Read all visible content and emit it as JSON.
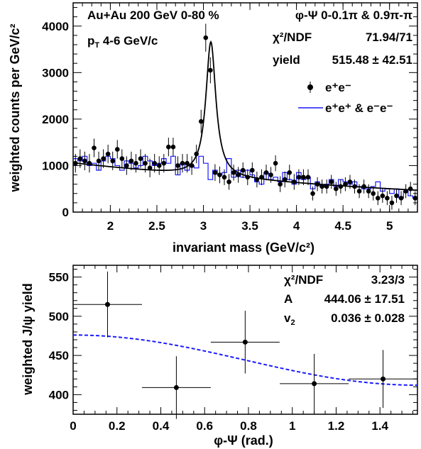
{
  "chart_data": [
    {
      "type": "scatter",
      "xlabel": "invariant mass (GeV/c²)",
      "ylabel": "weighted counts per GeV/c²",
      "xlim": [
        1.6,
        5.3
      ],
      "ylim": [
        0,
        4500
      ],
      "x_ticks": [
        2,
        2.5,
        3,
        3.5,
        4,
        4.5,
        5
      ],
      "x_tick_labels": [
        "2",
        "2.5",
        "3",
        "3.5",
        "4",
        "4.5",
        "5"
      ],
      "y_ticks": [
        0,
        1000,
        2000,
        3000,
        4000
      ],
      "y_tick_labels": [
        "0",
        "1000",
        "2000",
        "3000",
        "4000"
      ],
      "annotations": {
        "system": "Au+Au 200 GeV 0-80 %",
        "pt_p": "p",
        "pt_sub": "T",
        "pt_rest": " 4-6 GeV/c",
        "phi_range": "φ-Ψ 0-0.1π & 0.9π-π",
        "chi2_label": "χ²/NDF",
        "chi2_value": "71.94/71",
        "yield_label": "yield",
        "yield_value": "515.48 ± 42.51"
      },
      "legend": {
        "position": "top-right",
        "entries": [
          "e⁺e⁻",
          "e⁺e⁺ & e⁻e⁻"
        ]
      },
      "colors": {
        "data": "#000000",
        "like_sign": "#1a1aff",
        "fit": "#000000"
      },
      "series": [
        {
          "name": "e⁺e⁻",
          "style": "points",
          "x": [
            1.625,
            1.675,
            1.725,
            1.775,
            1.825,
            1.875,
            1.925,
            1.975,
            2.025,
            2.075,
            2.125,
            2.175,
            2.225,
            2.275,
            2.325,
            2.375,
            2.425,
            2.475,
            2.525,
            2.575,
            2.625,
            2.675,
            2.725,
            2.775,
            2.825,
            2.875,
            2.925,
            2.975,
            3.025,
            3.075,
            3.125,
            3.175,
            3.225,
            3.275,
            3.325,
            3.375,
            3.425,
            3.475,
            3.525,
            3.575,
            3.625,
            3.675,
            3.725,
            3.775,
            3.825,
            3.875,
            3.925,
            3.975,
            4.025,
            4.075,
            4.125,
            4.175,
            4.225,
            4.275,
            4.325,
            4.375,
            4.425,
            4.475,
            4.525,
            4.575,
            4.625,
            4.675,
            4.725,
            4.775,
            4.825,
            4.875,
            4.925,
            4.975,
            5.025,
            5.075,
            5.125,
            5.175,
            5.225,
            5.275
          ],
          "y": [
            1050,
            1150,
            1100,
            1050,
            1380,
            1100,
            1150,
            1250,
            1100,
            1350,
            1150,
            1000,
            1100,
            1050,
            1150,
            1050,
            950,
            1050,
            1000,
            1050,
            1400,
            1400,
            1000,
            1050,
            1050,
            1000,
            1250,
            1950,
            3750,
            3050,
            850,
            800,
            750,
            650,
            850,
            800,
            900,
            750,
            900,
            700,
            750,
            850,
            800,
            1050,
            600,
            700,
            850,
            650,
            750,
            750,
            750,
            400,
            600,
            550,
            550,
            650,
            500,
            550,
            600,
            650,
            550,
            450,
            550,
            450,
            400,
            300,
            350,
            300,
            200,
            350,
            300,
            450,
            500,
            300
          ],
          "error": [
            200,
            200,
            200,
            200,
            200,
            200,
            200,
            200,
            200,
            200,
            200,
            200,
            200,
            200,
            200,
            200,
            200,
            200,
            200,
            200,
            200,
            200,
            200,
            200,
            200,
            200,
            200,
            250,
            300,
            280,
            180,
            180,
            170,
            170,
            170,
            170,
            170,
            170,
            170,
            170,
            170,
            170,
            170,
            170,
            170,
            170,
            170,
            170,
            170,
            170,
            170,
            150,
            150,
            150,
            150,
            150,
            150,
            150,
            150,
            150,
            150,
            150,
            150,
            150,
            150,
            150,
            150,
            150,
            150,
            150,
            150,
            150,
            150,
            150
          ]
        },
        {
          "name": "e⁺e⁺ & e⁻e⁻",
          "style": "step",
          "x": [
            1.6,
            1.65,
            1.7,
            1.75,
            1.8,
            1.85,
            1.9,
            1.95,
            2.0,
            2.05,
            2.1,
            2.15,
            2.2,
            2.25,
            2.3,
            2.35,
            2.4,
            2.45,
            2.5,
            2.55,
            2.6,
            2.65,
            2.7,
            2.75,
            2.8,
            2.85,
            2.9,
            2.95,
            3.0,
            3.05,
            3.1,
            3.15,
            3.2,
            3.25,
            3.3,
            3.35,
            3.4,
            3.45,
            3.5,
            3.55,
            3.6,
            3.65,
            3.7,
            3.75,
            3.8,
            3.85,
            3.9,
            3.95,
            4.0,
            4.05,
            4.1,
            4.15,
            4.2,
            4.25,
            4.3,
            4.35,
            4.4,
            4.45,
            4.5,
            4.55,
            4.6,
            4.65,
            4.7,
            4.75,
            4.8,
            4.85,
            4.9,
            4.95,
            5.0,
            5.05,
            5.1,
            5.15,
            5.2,
            5.25
          ],
          "y": [
            1150,
            1100,
            1200,
            1000,
            1050,
            900,
            1100,
            1200,
            1150,
            1000,
            900,
            1100,
            1050,
            950,
            1000,
            1200,
            1100,
            1000,
            1050,
            1150,
            1050,
            1200,
            800,
            1050,
            900,
            1000,
            950,
            1200,
            1050,
            700,
            900,
            800,
            850,
            1150,
            750,
            900,
            750,
            900,
            800,
            650,
            600,
            850,
            700,
            750,
            650,
            850,
            700,
            600,
            850,
            700,
            750,
            500,
            650,
            550,
            600,
            700,
            550,
            700,
            650,
            600,
            650,
            550,
            500,
            500,
            550,
            650,
            450,
            500,
            400,
            500,
            300,
            450,
            350,
            300
          ]
        },
        {
          "name": "fit",
          "style": "line",
          "background": {
            "a": 1500,
            "b": -0.22
          },
          "peak": {
            "mu": 3.08,
            "gamma": 0.065,
            "amplitude": 2900
          }
        }
      ]
    },
    {
      "type": "scatter",
      "xlabel": "φ-Ψ (rad.)",
      "ylabel": "weighted J/ψ yield",
      "xlim": [
        0,
        1.571
      ],
      "ylim": [
        375,
        565
      ],
      "x_ticks": [
        0,
        0.2,
        0.4,
        0.6,
        0.8,
        1,
        1.2,
        1.4
      ],
      "x_tick_labels": [
        "0",
        "0.2",
        "0.4",
        "0.6",
        "0.8",
        "1",
        "1.2",
        "1.4"
      ],
      "y_ticks": [
        400,
        450,
        500,
        550
      ],
      "y_tick_labels": [
        "400",
        "450",
        "500",
        "550"
      ],
      "annotations": {
        "chi2_label": "χ²/NDF",
        "chi2_value": "3.23/3",
        "a_label": "A",
        "a_value": "444.06 ± 17.51",
        "v2_label": "v",
        "v2_sub": "2",
        "v2_value": "0.036 ± 0.028"
      },
      "series": [
        {
          "name": "data",
          "style": "points",
          "x": [
            0.157,
            0.471,
            0.785,
            1.1,
            1.414
          ],
          "y": [
            515,
            409,
            467,
            414,
            420
          ],
          "xerr": [
            0.157,
            0.157,
            0.157,
            0.157,
            0.157
          ],
          "yerr": [
            42,
            40,
            40,
            38,
            37
          ]
        },
        {
          "name": "fit",
          "style": "dashed",
          "A": 444.06,
          "v2": 0.036,
          "color": "#1a1aff"
        }
      ]
    }
  ]
}
